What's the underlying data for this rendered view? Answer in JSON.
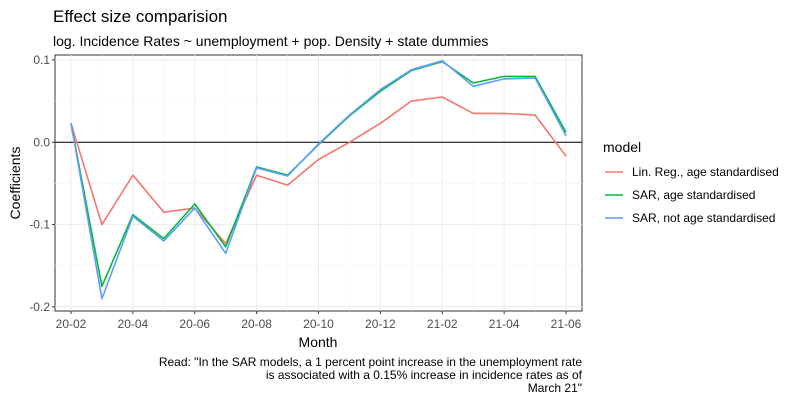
{
  "chart_data": {
    "type": "line",
    "title": "Effect size comparision",
    "subtitle": "log. Incidence Rates ~ unemployment + pop. Density + state dummies",
    "xlabel": "Month",
    "ylabel": "Coefficients",
    "x": [
      "20-02",
      "20-03",
      "20-04",
      "20-05",
      "20-06",
      "20-07",
      "20-08",
      "20-09",
      "20-10",
      "20-11",
      "20-12",
      "21-01",
      "21-02",
      "21-03",
      "21-04",
      "21-05",
      "21-06"
    ],
    "x_tick_labels": [
      "20-02",
      "20-04",
      "20-06",
      "20-08",
      "20-10",
      "20-12",
      "21-02",
      "21-04",
      "21-06"
    ],
    "y_ticks": [
      -0.2,
      -0.1,
      0.0,
      0.1
    ],
    "y_tick_labels": [
      "-0.2",
      "-0.1",
      "0.0",
      "0.1"
    ],
    "ylim": [
      -0.205,
      0.106
    ],
    "grid": true,
    "reference_line": 0,
    "legend": {
      "title": "model",
      "position": "right"
    },
    "series": [
      {
        "name": "Lin. Reg., age standardised",
        "color": "#F8766D",
        "values": [
          0.023,
          -0.1,
          -0.04,
          -0.085,
          -0.08,
          -0.123,
          -0.04,
          -0.052,
          -0.021,
          0.0,
          0.023,
          0.05,
          0.055,
          0.035,
          0.035,
          0.033,
          -0.017
        ]
      },
      {
        "name": "SAR, age standardised",
        "color": "#00BA38",
        "values": [
          0.023,
          -0.175,
          -0.088,
          -0.117,
          -0.075,
          -0.127,
          -0.03,
          -0.04,
          -0.003,
          0.032,
          0.062,
          0.087,
          0.098,
          0.072,
          0.08,
          0.08,
          0.012
        ]
      },
      {
        "name": "SAR, not age standardised",
        "color": "#619CFF",
        "values": [
          0.023,
          -0.19,
          -0.09,
          -0.12,
          -0.08,
          -0.135,
          -0.031,
          -0.041,
          -0.002,
          0.033,
          0.064,
          0.088,
          0.099,
          0.068,
          0.077,
          0.078,
          0.008
        ]
      }
    ],
    "caption": [
      "Read: \"In the SAR models, a 1 percent point increase in the unemployment rate",
      "is associated with a 0.15% increase in incidence rates as of",
      "March 21\""
    ]
  }
}
